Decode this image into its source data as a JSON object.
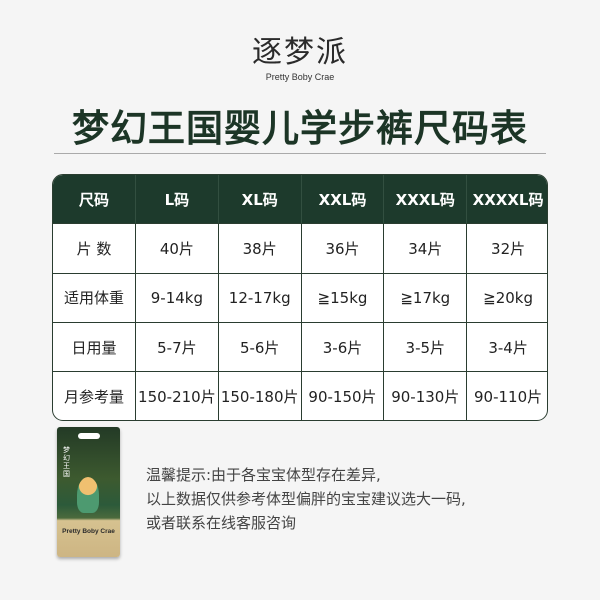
{
  "logo": {
    "cn": "逐梦派",
    "en": "Pretty Boby Crae"
  },
  "title": "梦幻王国婴儿学步裤尺码表",
  "table": {
    "headers": [
      "尺码",
      "L码",
      "XL码",
      "XXL码",
      "XXXL码",
      "XXXXL码"
    ],
    "rows": [
      [
        "片 数",
        "40片",
        "38片",
        "36片",
        "34片",
        "32片"
      ],
      [
        "适用体重",
        "9-14kg",
        "12-17kg",
        "≧15kg",
        "≧17kg",
        "≧20kg"
      ],
      [
        "日用量",
        "5-7片",
        "5-6片",
        "3-6片",
        "3-5片",
        "3-4片"
      ],
      [
        "月参考量",
        "150-210片",
        "150-180片",
        "90-150片",
        "90-130片",
        "90-110片"
      ]
    ]
  },
  "package": {
    "cn": "梦幻王国",
    "brand": "Pretty Boby Crae"
  },
  "note": [
    "温馨提示:由于各宝宝体型存在差异,",
    "以上数据仅供参考体型偏胖的宝宝建议选大一码,",
    "或者联系在线客服咨询"
  ],
  "colors": {
    "primary": "#1d3a2c",
    "background": "#f5f5f5",
    "package_gold": "#cdb583"
  }
}
